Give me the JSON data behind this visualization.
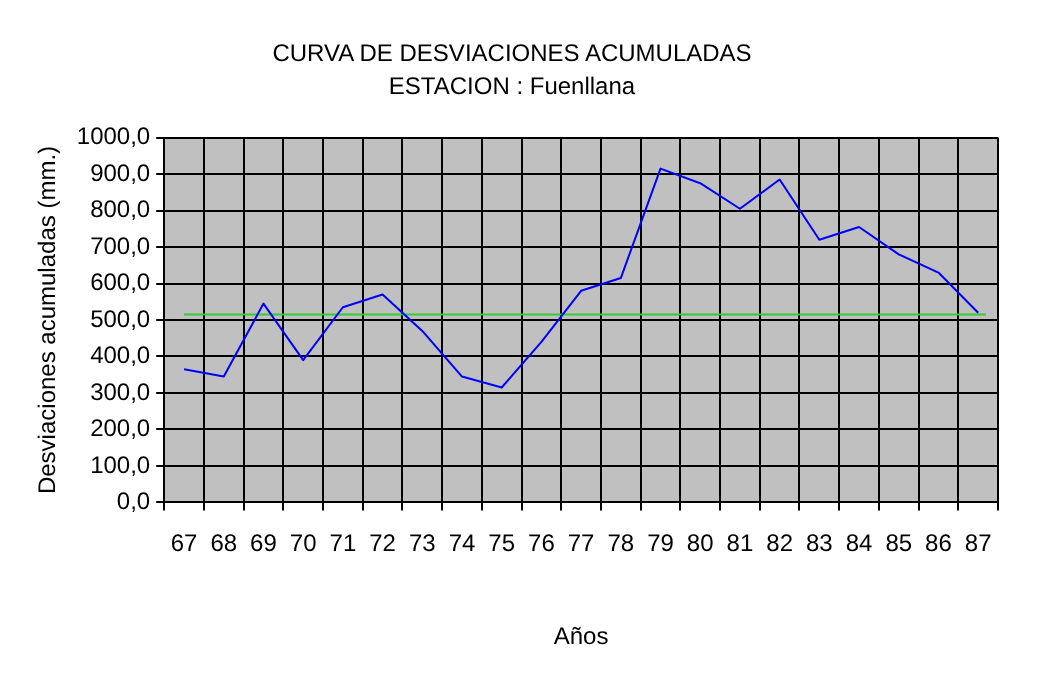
{
  "chart_data": {
    "type": "line",
    "title": "CURVA DE DESVIACIONES ACUMULADAS",
    "subtitle": "ESTACION : Fuenllana",
    "xlabel": "Años",
    "ylabel": "Desviaciones acumuladas (mm.)",
    "categories": [
      "67",
      "68",
      "69",
      "70",
      "71",
      "72",
      "73",
      "74",
      "75",
      "76",
      "77",
      "78",
      "79",
      "80",
      "81",
      "82",
      "83",
      "84",
      "85",
      "86",
      "87"
    ],
    "series": [
      {
        "color": "#0000ff",
        "values": [
          365,
          345,
          545,
          390,
          535,
          570,
          470,
          345,
          315,
          440,
          580,
          615,
          915,
          875,
          805,
          885,
          720,
          755,
          680,
          630,
          520
        ]
      }
    ],
    "ylim": [
      0,
      1000
    ],
    "yticks": [
      {
        "value": 0,
        "label": "0,0"
      },
      {
        "value": 100,
        "label": "100,0"
      },
      {
        "value": 200,
        "label": "200,0"
      },
      {
        "value": 300,
        "label": "300,0"
      },
      {
        "value": 400,
        "label": "400,0"
      },
      {
        "value": 500,
        "label": "500,0"
      },
      {
        "value": 600,
        "label": "600,0"
      },
      {
        "value": 700,
        "label": "700,0"
      },
      {
        "value": 800,
        "label": "800,0"
      },
      {
        "value": 900,
        "label": "900,0"
      },
      {
        "value": 1000,
        "label": "1000,0"
      }
    ],
    "ref_lines": [
      {
        "axis": "y",
        "value": 515,
        "color": "#33cc33"
      }
    ],
    "grid": true,
    "legend": false,
    "marker": "none",
    "line_style": "solid"
  }
}
